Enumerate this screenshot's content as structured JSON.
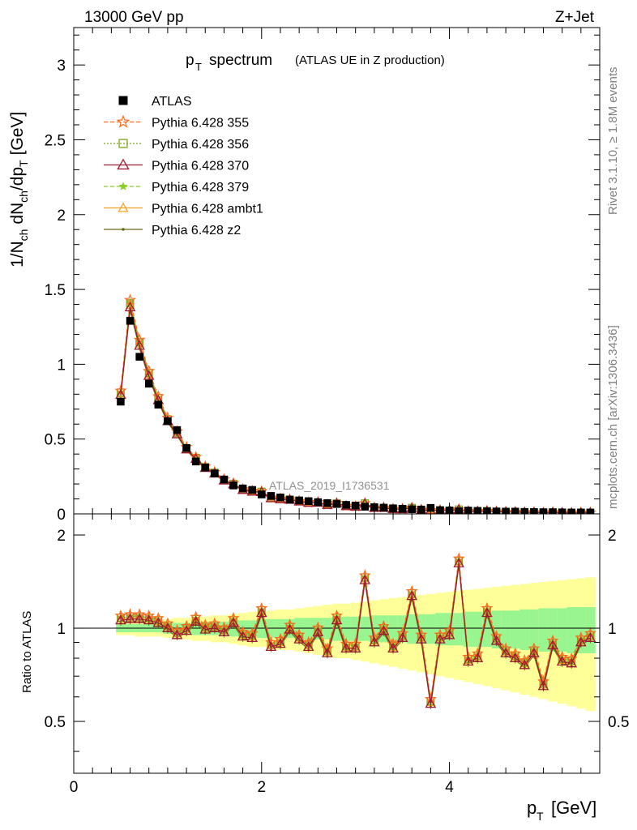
{
  "header": {
    "energy": "13000 GeV pp",
    "process": "Z+Jet",
    "plot_title": "p",
    "plot_title_sub": "T",
    "plot_title_rest": "spectrum",
    "plot_subtitle": "(ATLAS UE in Z production)",
    "analysis_id": "ATLAS_2019_I1736531",
    "side_rivet": "Rivet 3.1.10, ≥ 1.8M events",
    "side_mcplots": "mcplots.cern.ch [arXiv:1306.3436]"
  },
  "colors": {
    "atlas": "#000000",
    "p355": "#ff6a1f",
    "p356": "#7fa320",
    "p370": "#9b1b30",
    "p379": "#8ccc28",
    "ambt1": "#f0a020",
    "z2": "#6b6b18",
    "band_green": "#99f590",
    "band_yellow": "#ffff99"
  },
  "chart_data": [
    {
      "type": "line",
      "title": "pT spectrum (ATLAS UE in Z production)",
      "xlabel": "pT [GeV]",
      "ylabel": "1/Nch dNch/dpT [GeV]",
      "xlim": [
        0,
        5.6
      ],
      "ylim": [
        0,
        3.25
      ],
      "yticks": [
        "0",
        "0.5",
        "1",
        "1.5",
        "2",
        "2.5",
        "3"
      ],
      "x": [
        0.5,
        0.6,
        0.7,
        0.8,
        0.9,
        1.0,
        1.1,
        1.2,
        1.3,
        1.4,
        1.5,
        1.6,
        1.7,
        1.8,
        1.9,
        2.0,
        2.1,
        2.2,
        2.3,
        2.4,
        2.5,
        2.6,
        2.7,
        2.8,
        2.9,
        3.0,
        3.1,
        3.2,
        3.3,
        3.4,
        3.5,
        3.6,
        3.7,
        3.8,
        3.9,
        4.0,
        4.1,
        4.2,
        4.3,
        4.4,
        4.5,
        4.6,
        4.7,
        4.8,
        4.9,
        5.0,
        5.1,
        5.2,
        5.3,
        5.4,
        5.5
      ],
      "atlas": [
        0.75,
        1.29,
        1.05,
        0.87,
        0.73,
        0.62,
        0.56,
        0.44,
        0.35,
        0.31,
        0.27,
        0.23,
        0.19,
        0.17,
        0.16,
        0.13,
        0.12,
        0.11,
        0.095,
        0.09,
        0.085,
        0.078,
        0.072,
        0.066,
        0.06,
        0.056,
        0.048,
        0.045,
        0.041,
        0.037,
        0.034,
        0.031,
        0.029,
        0.04,
        0.025,
        0.023,
        0.018,
        0.022,
        0.02,
        0.017,
        0.016,
        0.015,
        0.015,
        0.013,
        0.012,
        0.011,
        0.011,
        0.01,
        0.009,
        0.009,
        0.009
      ],
      "ratio": [
        1.06,
        1.07,
        1.07,
        1.06,
        1.04,
        1.0,
        0.95,
        0.98,
        1.05,
        0.99,
        1.0,
        0.97,
        1.04,
        0.94,
        0.93,
        1.12,
        0.87,
        0.89,
        0.99,
        0.92,
        0.87,
        0.97,
        0.83,
        1.06,
        0.86,
        0.86,
        1.43,
        0.9,
        0.98,
        0.86,
        0.93,
        1.27,
        0.92,
        0.57,
        0.92,
        0.95,
        1.62,
        0.78,
        0.8,
        1.12,
        0.91,
        0.83,
        0.8,
        0.76,
        0.83,
        0.65,
        0.88,
        0.78,
        0.77,
        0.9,
        0.93
      ],
      "series": [
        {
          "name": "ATLAS",
          "color_key": "atlas",
          "marker": "square"
        },
        {
          "name": "Pythia 6.428 355",
          "color_key": "p355",
          "marker": "star",
          "factor": 1.035
        },
        {
          "name": "Pythia 6.428 356",
          "color_key": "p356",
          "marker": "open-square",
          "factor": 1.02
        },
        {
          "name": "Pythia 6.428 370",
          "color_key": "p370",
          "marker": "triangle",
          "factor": 1.0
        },
        {
          "name": "Pythia 6.428 379",
          "color_key": "p379",
          "marker": "small-star",
          "factor": 1.025
        },
        {
          "name": "Pythia 6.428 ambt1",
          "color_key": "ambt1",
          "marker": "open-triangle",
          "factor": 1.01
        },
        {
          "name": "Pythia 6.428 z2",
          "color_key": "z2",
          "marker": "dot",
          "factor": 0.985
        }
      ]
    },
    {
      "type": "line",
      "title": "Ratio to ATLAS",
      "ylabel": "Ratio to ATLAS",
      "xlabel": "pT [GeV]",
      "xlim": [
        0,
        5.6
      ],
      "ylim": [
        0.34,
        2.34
      ],
      "yticks": [
        "0.5",
        "1",
        "2"
      ],
      "xticks": [
        "0",
        "2",
        "4"
      ],
      "band_green_halfwidth": [
        0.03,
        0.03,
        0.03,
        0.03,
        0.03,
        0.04,
        0.04,
        0.04,
        0.05,
        0.05,
        0.05,
        0.05,
        0.06,
        0.06,
        0.06,
        0.07,
        0.07,
        0.07,
        0.07,
        0.08,
        0.08,
        0.08,
        0.08,
        0.09,
        0.09,
        0.09,
        0.09,
        0.1,
        0.1,
        0.1,
        0.1,
        0.11,
        0.11,
        0.11,
        0.12,
        0.12,
        0.12,
        0.13,
        0.13,
        0.13,
        0.14,
        0.14,
        0.14,
        0.15,
        0.15,
        0.16,
        0.16,
        0.16,
        0.17,
        0.17,
        0.17
      ],
      "band_yellow_halfwidth": [
        0.05,
        0.05,
        0.06,
        0.06,
        0.06,
        0.07,
        0.08,
        0.08,
        0.09,
        0.09,
        0.1,
        0.1,
        0.11,
        0.12,
        0.13,
        0.13,
        0.14,
        0.15,
        0.15,
        0.16,
        0.17,
        0.18,
        0.19,
        0.2,
        0.2,
        0.21,
        0.22,
        0.23,
        0.24,
        0.25,
        0.26,
        0.27,
        0.28,
        0.29,
        0.3,
        0.31,
        0.32,
        0.33,
        0.34,
        0.35,
        0.36,
        0.37,
        0.38,
        0.39,
        0.4,
        0.41,
        0.42,
        0.43,
        0.44,
        0.45,
        0.46
      ]
    }
  ]
}
